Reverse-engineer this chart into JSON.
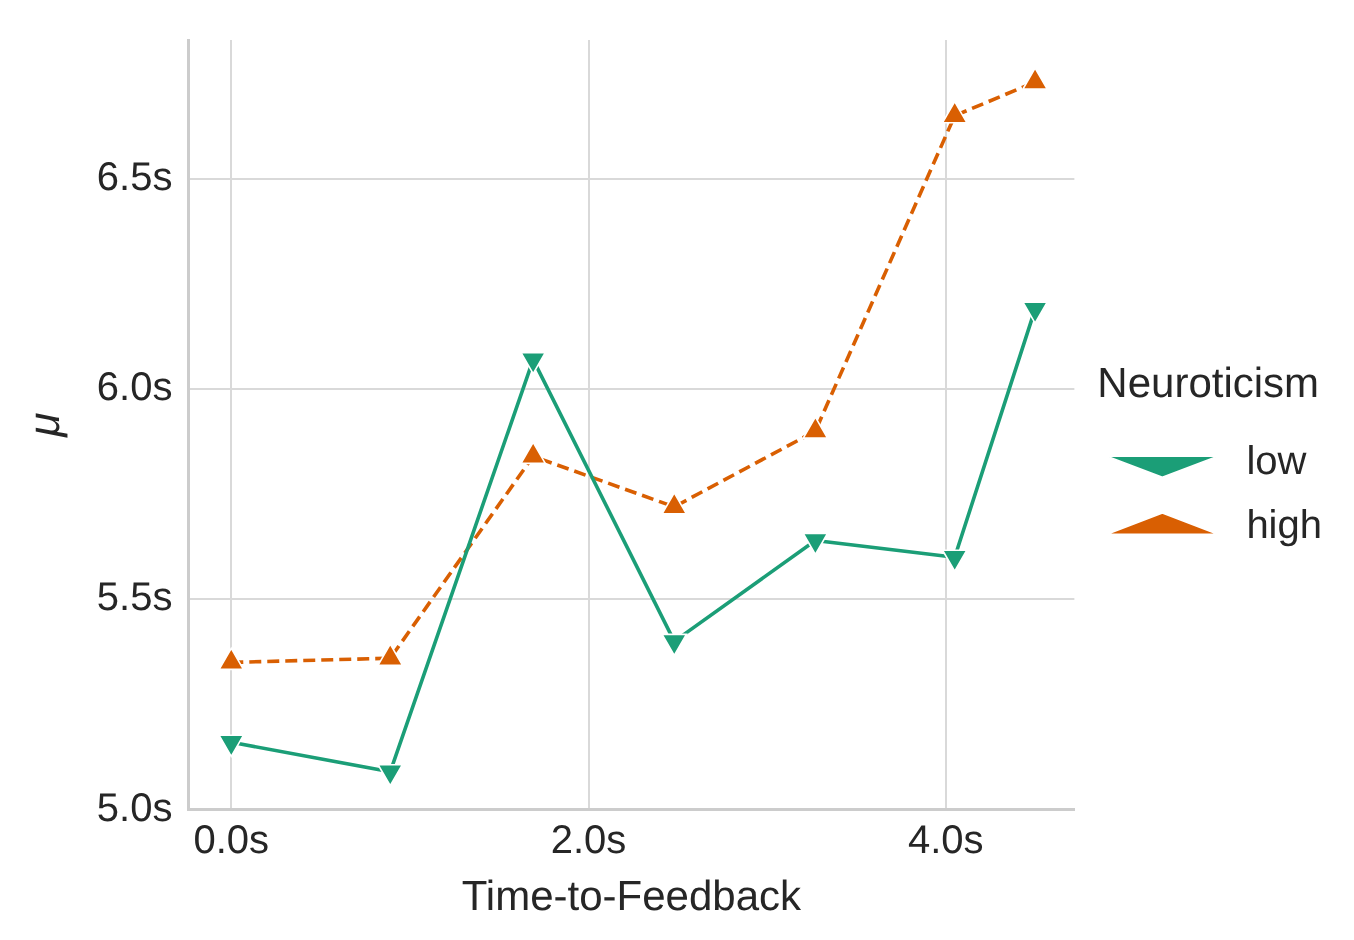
{
  "chart_data": {
    "type": "line",
    "xlabel": "Time-to-Feedback",
    "ylabel": "μ",
    "legend_title": "Neuroticism",
    "x": [
      0,
      0.89,
      1.69,
      2.48,
      3.27,
      4.05,
      4.5
    ],
    "series": [
      {
        "name": "low",
        "color": "#1b9e77",
        "marker": "triangle-down",
        "line_style": "solid",
        "values": [
          5.16,
          5.09,
          6.07,
          5.4,
          5.64,
          5.6,
          6.19
        ]
      },
      {
        "name": "high",
        "color": "#d95f02",
        "marker": "triangle",
        "line_style": "dashed",
        "values": [
          5.35,
          5.36,
          5.84,
          5.72,
          5.9,
          6.65,
          6.73
        ]
      }
    ],
    "xlim": [
      -0.24,
      4.72
    ],
    "ylim": [
      5.0,
      6.83
    ],
    "xticks": [
      {
        "value": 0,
        "label": "0.0s"
      },
      {
        "value": 2,
        "label": "2.0s"
      },
      {
        "value": 4,
        "label": "4.0s"
      }
    ],
    "yticks": [
      {
        "value": 5.0,
        "label": "5.0s"
      },
      {
        "value": 5.5,
        "label": "5.5s"
      },
      {
        "value": 6.0,
        "label": "6.0s"
      },
      {
        "value": 6.5,
        "label": "6.5s"
      }
    ],
    "grid": true,
    "legend": "right"
  }
}
